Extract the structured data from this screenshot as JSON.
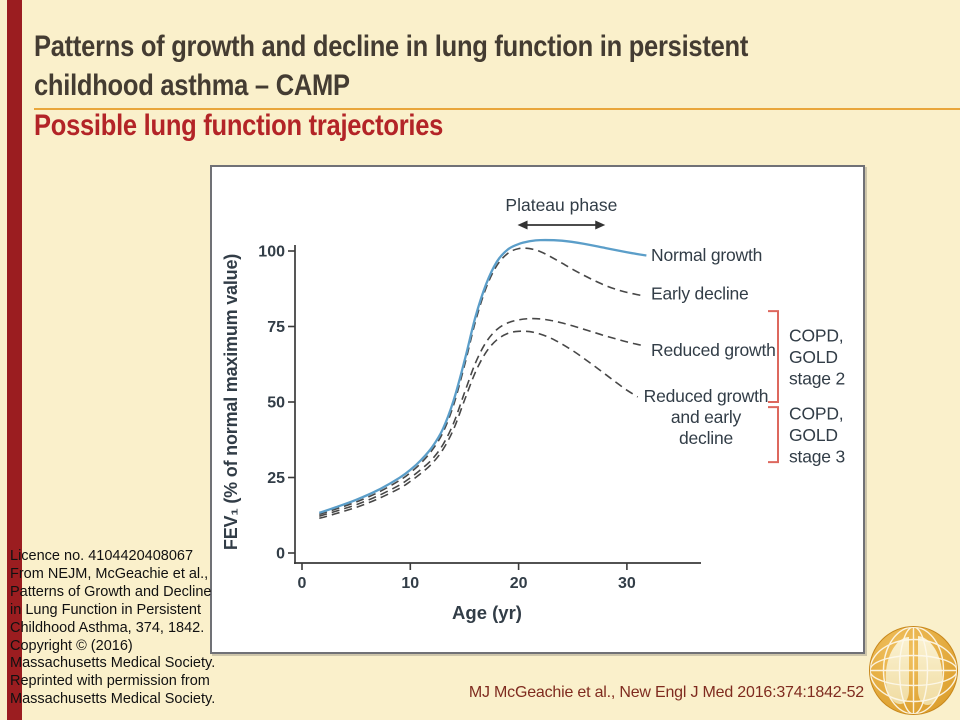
{
  "header": {
    "title_line1": "Patterns of growth and decline in lung function in persistent",
    "title_line2": "childhood asthma – CAMP",
    "subtitle": "Possible lung function trajectories"
  },
  "footer": {
    "license_lines": [
      "Licence no. 4104420408067",
      "From NEJM, McGeachie et al.,",
      "Patterns of Growth and Decline",
      "in Lung Function in Persistent",
      "Childhood Asthma, 374, 1842.",
      "Copyright © (2016)",
      "Massachusetts Medical Society.",
      "Reprinted with permission from",
      "Massachusetts Medical Society."
    ],
    "citation": "MJ McGeachie et al., New Engl J Med 2016:374:1842-52"
  },
  "icons": {
    "logo": "globe-lungs-logo"
  },
  "colors": {
    "background": "#FAF0CB",
    "accent_bar": "#9B1D20",
    "title_text": "#443C32",
    "subtitle_text": "#B32427",
    "divider": "#E9A63B",
    "license_text": "#111111",
    "citation_text": "#7F2B1F",
    "chart_text": "#323D47",
    "axis": "#3A3A3A",
    "normal_curve_blue": "#5B9EC9",
    "decline_curve_gray": "#474747",
    "bracket_red": "#DD685E",
    "logo_gold": "#E2A433"
  },
  "chart_data": {
    "type": "line",
    "xlabel": "Age (yr)",
    "ylabel": "FEV₁ (% of normal maximum value)",
    "xlim": [
      0,
      36
    ],
    "ylim": [
      0,
      100
    ],
    "xticks": [
      0,
      10,
      20,
      30
    ],
    "yticks": [
      0,
      25,
      50,
      75,
      100
    ],
    "grid": false,
    "annotations": {
      "plateau": {
        "label": "Plateau phase",
        "age_from": 19.9,
        "age_to": 28,
        "pct": 108.6
      }
    },
    "series": [
      {
        "name": "Normal growth",
        "label_lines": [
          "Normal growth"
        ],
        "label_pct": 98.7,
        "style": "solid",
        "color": "#5B9EC9",
        "points": [
          [
            1.6,
            13.3
          ],
          [
            3,
            15
          ],
          [
            5,
            17.6
          ],
          [
            7,
            20.8
          ],
          [
            9,
            24.9
          ],
          [
            10,
            27.5
          ],
          [
            11,
            30.8
          ],
          [
            12,
            35
          ],
          [
            13,
            41
          ],
          [
            14,
            50.5
          ],
          [
            15,
            63.5
          ],
          [
            16,
            78
          ],
          [
            17,
            89
          ],
          [
            18,
            96.5
          ],
          [
            19,
            100.5
          ],
          [
            20,
            102.3
          ],
          [
            21,
            103.2
          ],
          [
            22,
            103.6
          ],
          [
            24,
            103.4
          ],
          [
            26,
            102.4
          ],
          [
            28,
            101
          ],
          [
            30,
            99.6
          ],
          [
            31.8,
            98.5
          ]
        ]
      },
      {
        "name": "Early decline",
        "label_lines": [
          "Early decline"
        ],
        "label_pct": 86,
        "style": "dashed",
        "color": "#474747",
        "points": [
          [
            1.6,
            12.8
          ],
          [
            3,
            14.4
          ],
          [
            5,
            16.9
          ],
          [
            7,
            20
          ],
          [
            9,
            24
          ],
          [
            10,
            26.6
          ],
          [
            11,
            29.8
          ],
          [
            12,
            34
          ],
          [
            13,
            39.8
          ],
          [
            14,
            49
          ],
          [
            15,
            62
          ],
          [
            16,
            76.5
          ],
          [
            17,
            87.8
          ],
          [
            18,
            95.2
          ],
          [
            19,
            99.2
          ],
          [
            20,
            100.8
          ],
          [
            21,
            100.8
          ],
          [
            22,
            99.8
          ],
          [
            23,
            98
          ],
          [
            24,
            96
          ],
          [
            25,
            93.9
          ],
          [
            26,
            92
          ],
          [
            27,
            90.2
          ],
          [
            28,
            88.6
          ],
          [
            29,
            87.3
          ],
          [
            30,
            86.3
          ],
          [
            31.3,
            85.3
          ]
        ]
      },
      {
        "name": "Reduced growth",
        "label_lines": [
          "Reduced growth"
        ],
        "label_pct": 67.2,
        "style": "dashed",
        "color": "#474747",
        "points": [
          [
            1.6,
            12.2
          ],
          [
            3,
            13.7
          ],
          [
            5,
            16
          ],
          [
            7,
            18.9
          ],
          [
            9,
            22.5
          ],
          [
            10,
            24.9
          ],
          [
            11,
            27.7
          ],
          [
            12,
            31
          ],
          [
            13,
            35.8
          ],
          [
            14,
            43
          ],
          [
            15,
            53
          ],
          [
            16,
            62.8
          ],
          [
            17,
            69.8
          ],
          [
            18,
            74
          ],
          [
            19,
            76.2
          ],
          [
            20,
            77.2
          ],
          [
            21,
            77.6
          ],
          [
            22,
            77.5
          ],
          [
            23,
            77
          ],
          [
            24,
            76.2
          ],
          [
            25,
            75.2
          ],
          [
            26,
            74.1
          ],
          [
            27,
            73
          ],
          [
            28,
            71.9
          ],
          [
            29,
            70.9
          ],
          [
            30,
            69.9
          ],
          [
            31.3,
            68.8
          ]
        ]
      },
      {
        "name": "Reduced growth and early decline",
        "label_lines": [
          "Reduced growth",
          "and early",
          "decline"
        ],
        "label_pct": 52.3,
        "style": "dashed",
        "color": "#474747",
        "points": [
          [
            1.6,
            11.5
          ],
          [
            3,
            12.9
          ],
          [
            5,
            15.1
          ],
          [
            7,
            17.9
          ],
          [
            9,
            21.4
          ],
          [
            10,
            23.7
          ],
          [
            11,
            26.4
          ],
          [
            12,
            29.6
          ],
          [
            13,
            34.2
          ],
          [
            14,
            41
          ],
          [
            15,
            50.5
          ],
          [
            16,
            59.8
          ],
          [
            17,
            66.5
          ],
          [
            18,
            70.6
          ],
          [
            19,
            72.7
          ],
          [
            20,
            73.4
          ],
          [
            21,
            73.3
          ],
          [
            22,
            72.5
          ],
          [
            23,
            71.1
          ],
          [
            24,
            69.2
          ],
          [
            25,
            67
          ],
          [
            26,
            64.5
          ],
          [
            27,
            61.9
          ],
          [
            28,
            59.2
          ],
          [
            29,
            56.5
          ],
          [
            30,
            53.9
          ],
          [
            31,
            51.7
          ]
        ]
      }
    ],
    "brackets": [
      {
        "label_lines": [
          "COPD,",
          "GOLD",
          "stage 2"
        ],
        "pct_top": 80.1,
        "pct_bottom": 50
      },
      {
        "label_lines": [
          "COPD,",
          "GOLD",
          "stage 3"
        ],
        "pct_top": 48.3,
        "pct_bottom": 30.1
      }
    ]
  }
}
